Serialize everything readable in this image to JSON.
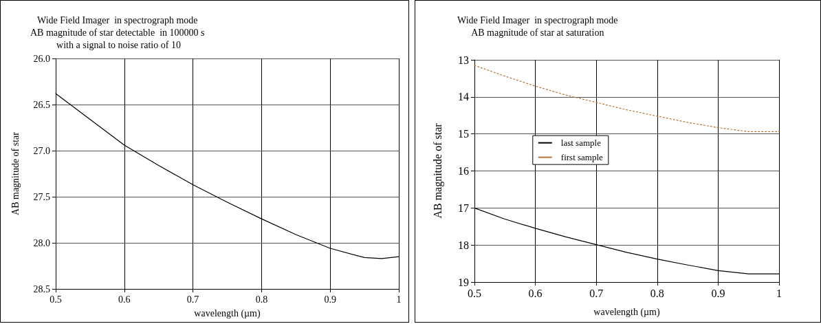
{
  "chart_data": [
    {
      "type": "line",
      "title": "Wide Field Imager  in spectrograph mode\nAB magnitude of star detectable  in 100000 s\n with a signal to noise ratio of 10",
      "xlabel": "wavelength (µm)",
      "ylabel": "AB magnitude of star",
      "x": [
        0.5,
        0.55,
        0.6,
        0.65,
        0.7,
        0.75,
        0.8,
        0.85,
        0.9,
        0.95,
        0.975,
        1.0
      ],
      "series": [
        {
          "color": "#000000",
          "line_style": "solid",
          "values": [
            26.38,
            26.66,
            26.94,
            27.16,
            27.37,
            27.56,
            27.74,
            27.91,
            28.06,
            28.16,
            28.17,
            28.15
          ]
        }
      ],
      "xlim": [
        0.5,
        1
      ],
      "xticks": [
        0.5,
        0.6,
        0.7,
        0.8,
        0.9,
        1
      ],
      "ylim": [
        28.5,
        26.0
      ],
      "yticks": [
        {
          "value": 26,
          "label": "26.0"
        },
        26.5,
        {
          "value": 27,
          "label": "27.0"
        },
        27.5,
        {
          "value": 28,
          "label": "28.0"
        },
        28.5
      ],
      "grid": true,
      "legend": false,
      "marker": "none"
    },
    {
      "type": "line",
      "title": "Wide Field Imager  in spectrograph mode\nAB magnitude of star at saturation",
      "xlabel": "wavelength (µm)",
      "ylabel": "AB magnitude of star",
      "x": [
        0.5,
        0.55,
        0.6,
        0.65,
        0.7,
        0.75,
        0.8,
        0.85,
        0.9,
        0.95,
        1.0
      ],
      "series": [
        {
          "name": "last sample",
          "color": "#000000",
          "line_style": "solid",
          "values": [
            17.0,
            17.3,
            17.55,
            17.78,
            17.99,
            18.2,
            18.38,
            18.54,
            18.69,
            18.78,
            18.78
          ]
        },
        {
          "name": "first sample",
          "color": "#b5733a",
          "line_style": "dotted",
          "values": [
            13.15,
            13.44,
            13.71,
            13.95,
            14.15,
            14.35,
            14.52,
            14.69,
            14.83,
            14.94,
            14.94
          ]
        }
      ],
      "xlim": [
        0.5,
        1
      ],
      "xticks": [
        0.5,
        0.6,
        0.7,
        0.8,
        0.9,
        1
      ],
      "ylim": [
        19,
        13
      ],
      "yticks": [
        13,
        14,
        15,
        16,
        17,
        18,
        19
      ],
      "grid": true,
      "legend": "center left",
      "marker": "none"
    }
  ]
}
